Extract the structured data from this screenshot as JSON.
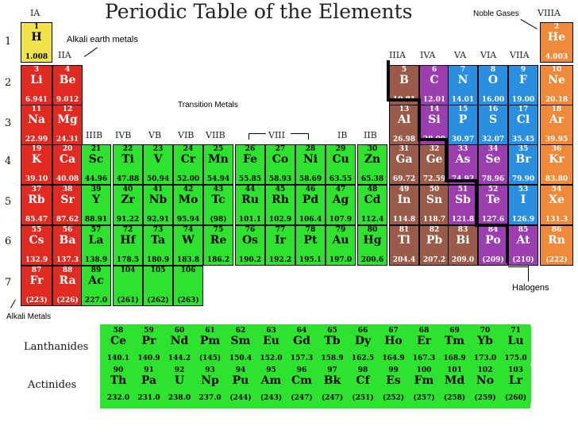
{
  "title": "Periodic Table of the Elements",
  "group_labels": [
    "IA",
    "IIA",
    "IIIB",
    "IVB",
    "VB",
    "VIB",
    "VIIB",
    "VIII",
    "IB",
    "IIB",
    "IIIA",
    "IVA",
    "VA",
    "VIA",
    "VIIA",
    "VIIIA"
  ],
  "period_labels": [
    "1",
    "2",
    "3",
    "4",
    "5",
    "6",
    "7"
  ],
  "annotations": {
    "alkali_earth": "Alkali earth metals",
    "transition": "Transition Metals",
    "noble": "Noble Gases",
    "halogens": "Halogens",
    "alkali": "Alkali Metals"
  },
  "series_labels": {
    "lanthanides": "Lanthanides",
    "actinides": "Actinides"
  },
  "colors": {
    "hydrogen": "#f2e34a",
    "alkali": "#e02a22",
    "transition": "#2de32d",
    "metalloid_brown": "#9a5c48",
    "purple": "#9b3fb0",
    "blue": "#2a8fe0",
    "orange": "#f08a3a"
  },
  "elements": [
    {
      "num": "1",
      "sym": "H",
      "mass": "1.008",
      "cat": "hydrogen"
    },
    {
      "num": "3",
      "sym": "Li",
      "mass": "6.941",
      "cat": "alkali"
    },
    {
      "num": "4",
      "sym": "Be",
      "mass": "9.012",
      "cat": "alkali"
    },
    {
      "num": "11",
      "sym": "Na",
      "mass": "22.99",
      "cat": "alkali"
    },
    {
      "num": "12",
      "sym": "Mg",
      "mass": "24.31",
      "cat": "alkali"
    },
    {
      "num": "19",
      "sym": "K",
      "mass": "39.10",
      "cat": "alkali"
    },
    {
      "num": "20",
      "sym": "Ca",
      "mass": "40.08",
      "cat": "alkali"
    },
    {
      "num": "37",
      "sym": "Rb",
      "mass": "85.47",
      "cat": "alkali"
    },
    {
      "num": "38",
      "sym": "Sr",
      "mass": "87.62",
      "cat": "alkali"
    },
    {
      "num": "55",
      "sym": "Cs",
      "mass": "132.9",
      "cat": "alkali"
    },
    {
      "num": "56",
      "sym": "Ba",
      "mass": "137.3",
      "cat": "alkali"
    },
    {
      "num": "87",
      "sym": "Fr",
      "mass": "(223)",
      "cat": "alkali"
    },
    {
      "num": "88",
      "sym": "Ra",
      "mass": "(226)",
      "cat": "alkali"
    },
    {
      "num": "21",
      "sym": "Sc",
      "mass": "44.96",
      "cat": "transition"
    },
    {
      "num": "22",
      "sym": "Ti",
      "mass": "47.88",
      "cat": "transition"
    },
    {
      "num": "23",
      "sym": "V",
      "mass": "50.94",
      "cat": "transition"
    },
    {
      "num": "24",
      "sym": "Cr",
      "mass": "52.00",
      "cat": "transition"
    },
    {
      "num": "25",
      "sym": "Mn",
      "mass": "54.94",
      "cat": "transition"
    },
    {
      "num": "26",
      "sym": "Fe",
      "mass": "55.85",
      "cat": "transition"
    },
    {
      "num": "27",
      "sym": "Co",
      "mass": "58.93",
      "cat": "transition"
    },
    {
      "num": "28",
      "sym": "Ni",
      "mass": "58.69",
      "cat": "transition"
    },
    {
      "num": "29",
      "sym": "Cu",
      "mass": "63.55",
      "cat": "transition"
    },
    {
      "num": "30",
      "sym": "Zn",
      "mass": "65.38",
      "cat": "transition"
    },
    {
      "num": "39",
      "sym": "Y",
      "mass": "88.91",
      "cat": "transition"
    },
    {
      "num": "40",
      "sym": "Zr",
      "mass": "91.22",
      "cat": "transition"
    },
    {
      "num": "41",
      "sym": "Nb",
      "mass": "92.91",
      "cat": "transition"
    },
    {
      "num": "42",
      "sym": "Mo",
      "mass": "95.94",
      "cat": "transition"
    },
    {
      "num": "43",
      "sym": "Tc",
      "mass": "(98)",
      "cat": "transition"
    },
    {
      "num": "44",
      "sym": "Ru",
      "mass": "101.1",
      "cat": "transition"
    },
    {
      "num": "45",
      "sym": "Rh",
      "mass": "102.9",
      "cat": "transition"
    },
    {
      "num": "46",
      "sym": "Pd",
      "mass": "106.4",
      "cat": "transition"
    },
    {
      "num": "47",
      "sym": "Ag",
      "mass": "107.9",
      "cat": "transition"
    },
    {
      "num": "48",
      "sym": "Cd",
      "mass": "112.4",
      "cat": "transition"
    },
    {
      "num": "57",
      "sym": "La",
      "mass": "138.9",
      "cat": "transition"
    },
    {
      "num": "72",
      "sym": "Hf",
      "mass": "178.5",
      "cat": "transition"
    },
    {
      "num": "73",
      "sym": "Ta",
      "mass": "180.9",
      "cat": "transition"
    },
    {
      "num": "74",
      "sym": "W",
      "mass": "183.8",
      "cat": "transition"
    },
    {
      "num": "75",
      "sym": "Re",
      "mass": "186.2",
      "cat": "transition"
    },
    {
      "num": "76",
      "sym": "Os",
      "mass": "190.2",
      "cat": "transition"
    },
    {
      "num": "77",
      "sym": "Ir",
      "mass": "192.2",
      "cat": "transition"
    },
    {
      "num": "78",
      "sym": "Pt",
      "mass": "195.1",
      "cat": "transition"
    },
    {
      "num": "79",
      "sym": "Au",
      "mass": "197.0",
      "cat": "transition"
    },
    {
      "num": "80",
      "sym": "Hg",
      "mass": "200.6",
      "cat": "transition"
    },
    {
      "num": "89",
      "sym": "Ac",
      "mass": "227.0",
      "cat": "transition"
    },
    {
      "num": "104",
      "sym": "",
      "mass": "(261)",
      "cat": "transition"
    },
    {
      "num": "105",
      "sym": "",
      "mass": "(262)",
      "cat": "transition"
    },
    {
      "num": "106",
      "sym": "",
      "mass": "(263)",
      "cat": "transition"
    },
    {
      "num": "5",
      "sym": "B",
      "mass": "10.81",
      "cat": "metalloid_brown"
    },
    {
      "num": "6",
      "sym": "C",
      "mass": "12.01",
      "cat": "purple"
    },
    {
      "num": "7",
      "sym": "N",
      "mass": "14.01",
      "cat": "blue"
    },
    {
      "num": "8",
      "sym": "O",
      "mass": "16.00",
      "cat": "blue"
    },
    {
      "num": "9",
      "sym": "F",
      "mass": "19.00",
      "cat": "blue"
    },
    {
      "num": "2",
      "sym": "He",
      "mass": "4.003",
      "cat": "orange"
    },
    {
      "num": "10",
      "sym": "Ne",
      "mass": "20.18",
      "cat": "orange"
    },
    {
      "num": "13",
      "sym": "Al",
      "mass": "26.98",
      "cat": "metalloid_brown"
    },
    {
      "num": "14",
      "sym": "Si",
      "mass": "28.09",
      "cat": "purple"
    },
    {
      "num": "15",
      "sym": "P",
      "mass": "30.97",
      "cat": "blue"
    },
    {
      "num": "16",
      "sym": "S",
      "mass": "32.07",
      "cat": "blue"
    },
    {
      "num": "17",
      "sym": "Cl",
      "mass": "35.45",
      "cat": "blue"
    },
    {
      "num": "18",
      "sym": "Ar",
      "mass": "39.95",
      "cat": "orange"
    },
    {
      "num": "31",
      "sym": "Ga",
      "mass": "69.72",
      "cat": "metalloid_brown"
    },
    {
      "num": "32",
      "sym": "Ge",
      "mass": "72.59",
      "cat": "metalloid_brown"
    },
    {
      "num": "33",
      "sym": "As",
      "mass": "74.92",
      "cat": "purple"
    },
    {
      "num": "34",
      "sym": "Se",
      "mass": "78.96",
      "cat": "purple"
    },
    {
      "num": "35",
      "sym": "Br",
      "mass": "79.90",
      "cat": "blue"
    },
    {
      "num": "36",
      "sym": "Kr",
      "mass": "83.80",
      "cat": "orange"
    },
    {
      "num": "49",
      "sym": "In",
      "mass": "114.8",
      "cat": "metalloid_brown"
    },
    {
      "num": "50",
      "sym": "Sn",
      "mass": "118.7",
      "cat": "metalloid_brown"
    },
    {
      "num": "51",
      "sym": "Sb",
      "mass": "121.8",
      "cat": "purple"
    },
    {
      "num": "52",
      "sym": "Te",
      "mass": "127.6",
      "cat": "purple"
    },
    {
      "num": "53",
      "sym": "I",
      "mass": "126.9",
      "cat": "blue"
    },
    {
      "num": "54",
      "sym": "Xe",
      "mass": "131.3",
      "cat": "orange"
    },
    {
      "num": "81",
      "sym": "Tl",
      "mass": "204.4",
      "cat": "metalloid_brown"
    },
    {
      "num": "82",
      "sym": "Pb",
      "mass": "207.2",
      "cat": "metalloid_brown"
    },
    {
      "num": "83",
      "sym": "Bi",
      "mass": "209.0",
      "cat": "metalloid_brown"
    },
    {
      "num": "84",
      "sym": "Po",
      "mass": "(209)",
      "cat": "purple"
    },
    {
      "num": "85",
      "sym": "At",
      "mass": "(210)",
      "cat": "purple"
    },
    {
      "num": "86",
      "sym": "Rn",
      "mass": "(222)",
      "cat": "orange"
    }
  ],
  "lanthanides": [
    {
      "num": "58",
      "sym": "Ce",
      "mass": "140.1"
    },
    {
      "num": "59",
      "sym": "Pr",
      "mass": "140.9"
    },
    {
      "num": "60",
      "sym": "Nd",
      "mass": "144.2"
    },
    {
      "num": "61",
      "sym": "Pm",
      "mass": "(145)"
    },
    {
      "num": "62",
      "sym": "Sm",
      "mass": "150.4"
    },
    {
      "num": "63",
      "sym": "Eu",
      "mass": "152.0"
    },
    {
      "num": "64",
      "sym": "Gd",
      "mass": "157.3"
    },
    {
      "num": "65",
      "sym": "Tb",
      "mass": "158.9"
    },
    {
      "num": "66",
      "sym": "Dy",
      "mass": "162.5"
    },
    {
      "num": "67",
      "sym": "Ho",
      "mass": "164.9"
    },
    {
      "num": "68",
      "sym": "Er",
      "mass": "167.3"
    },
    {
      "num": "69",
      "sym": "Tm",
      "mass": "168.9"
    },
    {
      "num": "70",
      "sym": "Yb",
      "mass": "173.0"
    },
    {
      "num": "71",
      "sym": "Lu",
      "mass": "175.0"
    }
  ],
  "actinides": [
    {
      "num": "90",
      "sym": "Th",
      "mass": "232.0"
    },
    {
      "num": "91",
      "sym": "Pa",
      "mass": "231.0"
    },
    {
      "num": "92",
      "sym": "U",
      "mass": "238.0"
    },
    {
      "num": "93",
      "sym": "Np",
      "mass": "237.0"
    },
    {
      "num": "94",
      "sym": "Pu",
      "mass": "(244)"
    },
    {
      "num": "95",
      "sym": "Am",
      "mass": "(243)"
    },
    {
      "num": "96",
      "sym": "Cm",
      "mass": "(247)"
    },
    {
      "num": "97",
      "sym": "Bk",
      "mass": "(247)"
    },
    {
      "num": "98",
      "sym": "Cf",
      "mass": "(251)"
    },
    {
      "num": "99",
      "sym": "Es",
      "mass": "(252)"
    },
    {
      "num": "100",
      "sym": "Fm",
      "mass": "(257)"
    },
    {
      "num": "101",
      "sym": "Md",
      "mass": "(258)"
    },
    {
      "num": "102",
      "sym": "No",
      "mass": "(259)"
    },
    {
      "num": "103",
      "sym": "Lr",
      "mass": "(260)"
    }
  ]
}
